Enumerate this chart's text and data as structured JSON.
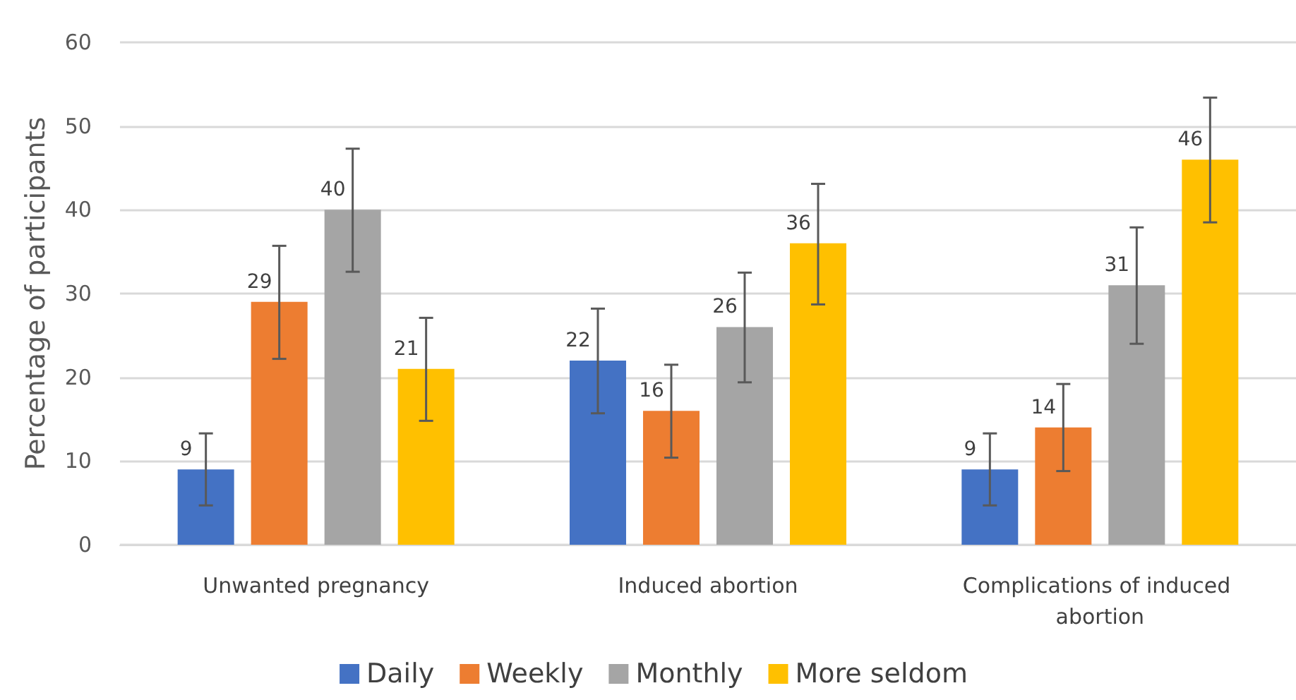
{
  "chart_data": {
    "type": "bar",
    "ylabel": "Percentage of participants",
    "categories": [
      "Unwanted pregnancy",
      "Induced abortion",
      "Complications of induced abortion"
    ],
    "series": [
      {
        "name": "Daily",
        "color": "#4472c4",
        "values": [
          9,
          22,
          9
        ],
        "errors": [
          [
            4.7,
            13.3
          ],
          [
            15.7,
            28.2
          ],
          [
            4.7,
            13.3
          ]
        ]
      },
      {
        "name": "Weekly",
        "color": "#ed7d31",
        "values": [
          29,
          16,
          14
        ],
        "errors": [
          [
            22.2,
            35.7
          ],
          [
            10.4,
            21.5
          ],
          [
            8.8,
            19.2
          ]
        ]
      },
      {
        "name": "Monthly",
        "color": "#a5a5a5",
        "values": [
          40,
          26,
          31
        ],
        "errors": [
          [
            32.6,
            47.3
          ],
          [
            19.4,
            32.5
          ],
          [
            24.0,
            37.9
          ]
        ]
      },
      {
        "name": "More seldom",
        "color": "#ffc000",
        "values": [
          21,
          36,
          46
        ],
        "errors": [
          [
            14.8,
            27.1
          ],
          [
            28.7,
            43.1
          ],
          [
            38.5,
            53.4
          ]
        ]
      }
    ],
    "ylim": [
      0,
      60
    ],
    "yticks": [
      0,
      10,
      20,
      30,
      40,
      50,
      60
    ],
    "grid": "y",
    "legend": "bottom",
    "data_labels": true
  }
}
